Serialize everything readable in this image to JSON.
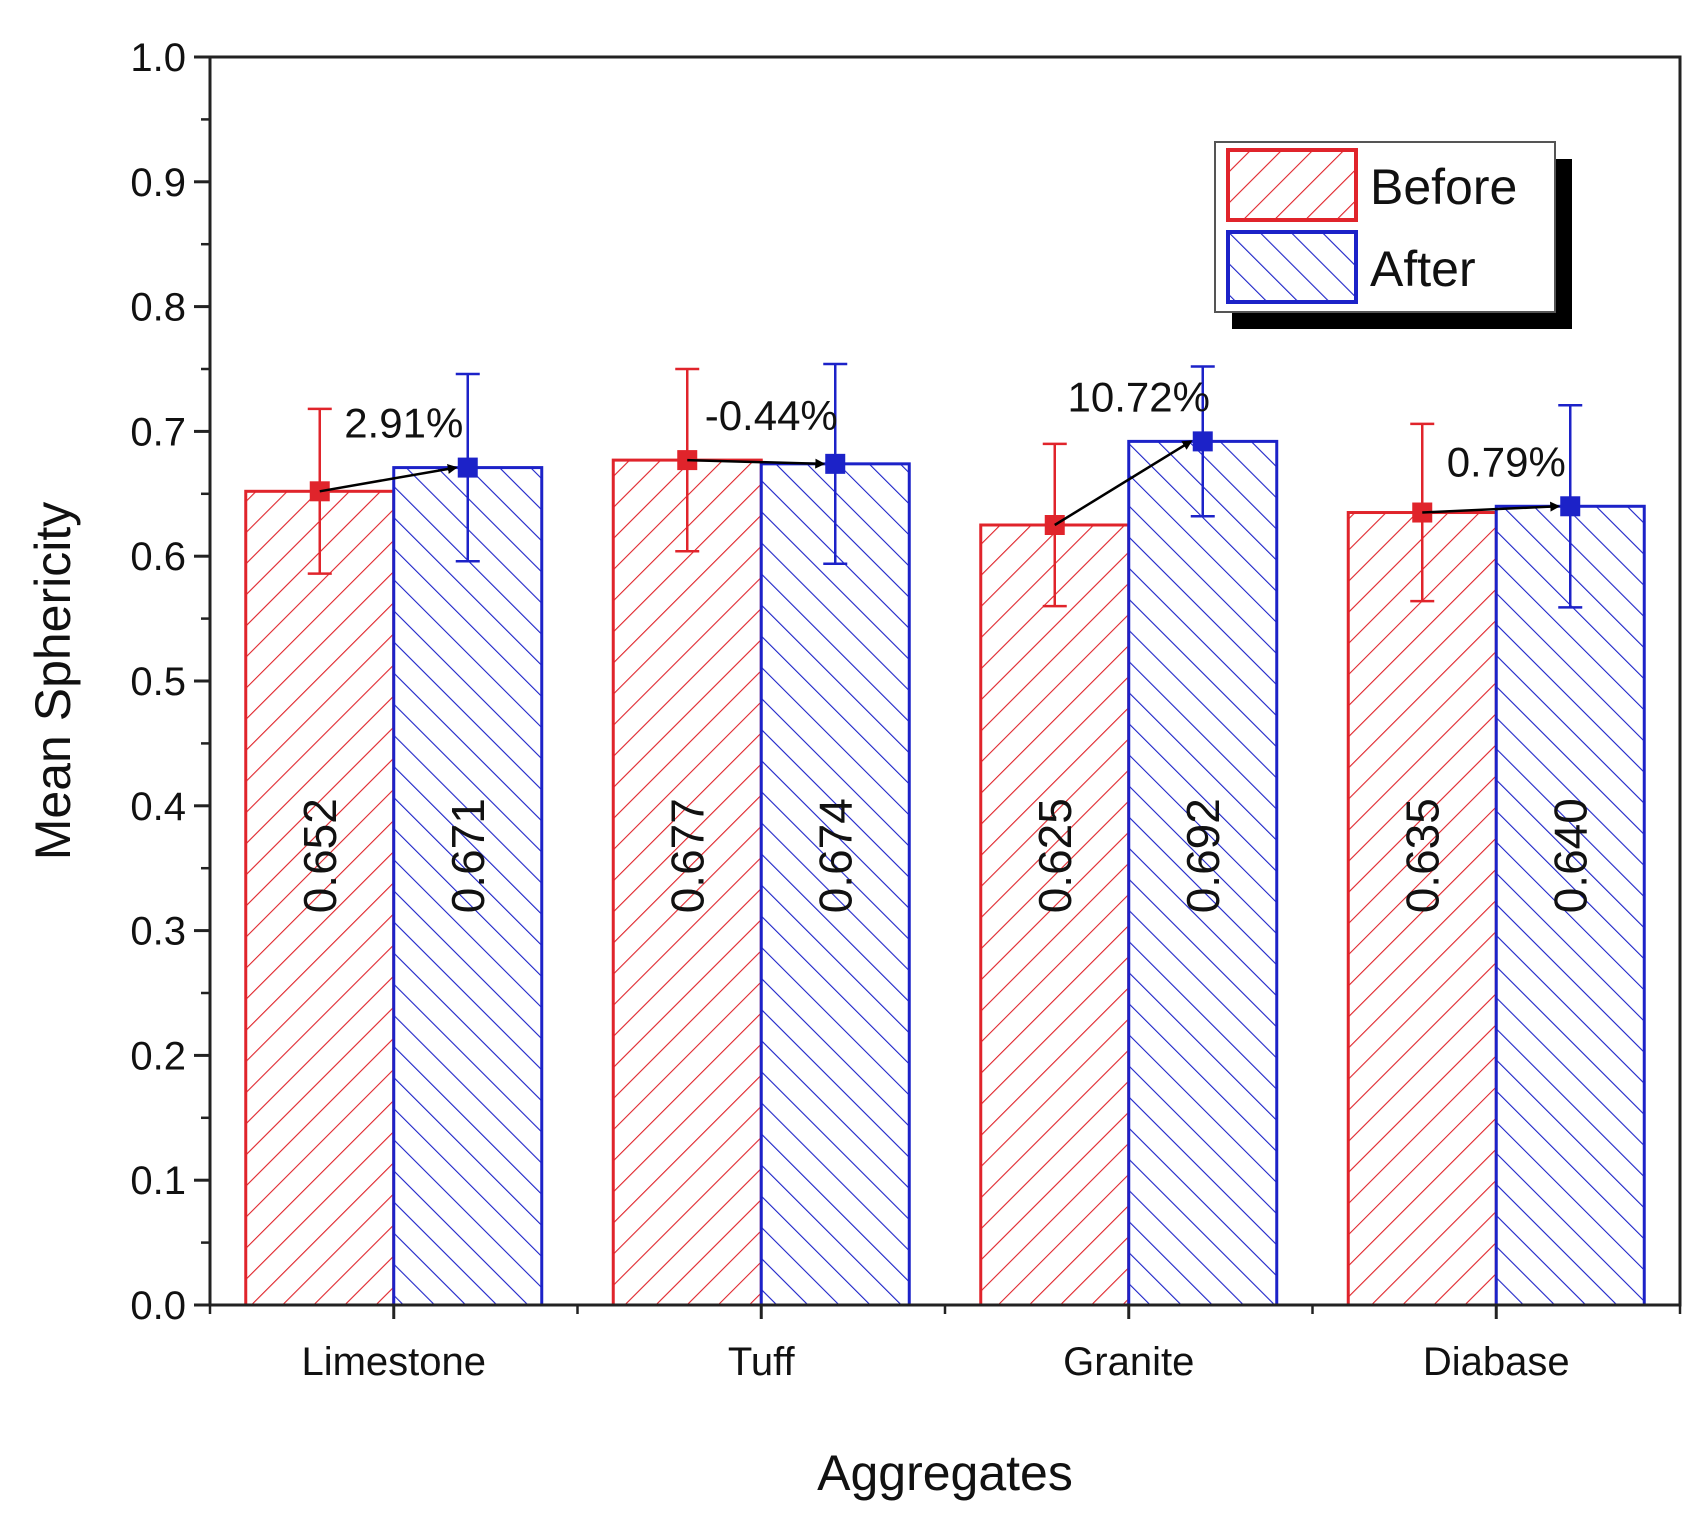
{
  "chart_data": {
    "type": "bar",
    "title": "",
    "xlabel": "Aggregates",
    "ylabel": "Mean Sphericity",
    "ylim": [
      0.0,
      1.0
    ],
    "yticks": [
      "0.0",
      "0.1",
      "0.2",
      "0.3",
      "0.4",
      "0.5",
      "0.6",
      "0.7",
      "0.8",
      "0.9",
      "1.0"
    ],
    "categories": [
      "Limestone",
      "Tuff",
      "Granite",
      "Diabase"
    ],
    "series": [
      {
        "name": "Before",
        "color": "#e0242b",
        "values": [
          0.652,
          0.677,
          0.625,
          0.635
        ],
        "value_labels": [
          "0.652",
          "0.677",
          "0.625",
          "0.635"
        ],
        "error": [
          0.066,
          0.073,
          0.065,
          0.071
        ]
      },
      {
        "name": "After",
        "color": "#1c22c8",
        "values": [
          0.671,
          0.674,
          0.692,
          0.64
        ],
        "value_labels": [
          "0.671",
          "0.674",
          "0.692",
          "0.640"
        ],
        "error": [
          0.075,
          0.08,
          0.06,
          0.081
        ]
      }
    ],
    "change_labels": [
      "2.91%",
      "-0.44%",
      "10.72%",
      "0.79%"
    ],
    "legend": {
      "position": "top-right",
      "entries": [
        "Before",
        "After"
      ]
    },
    "grid": false
  }
}
